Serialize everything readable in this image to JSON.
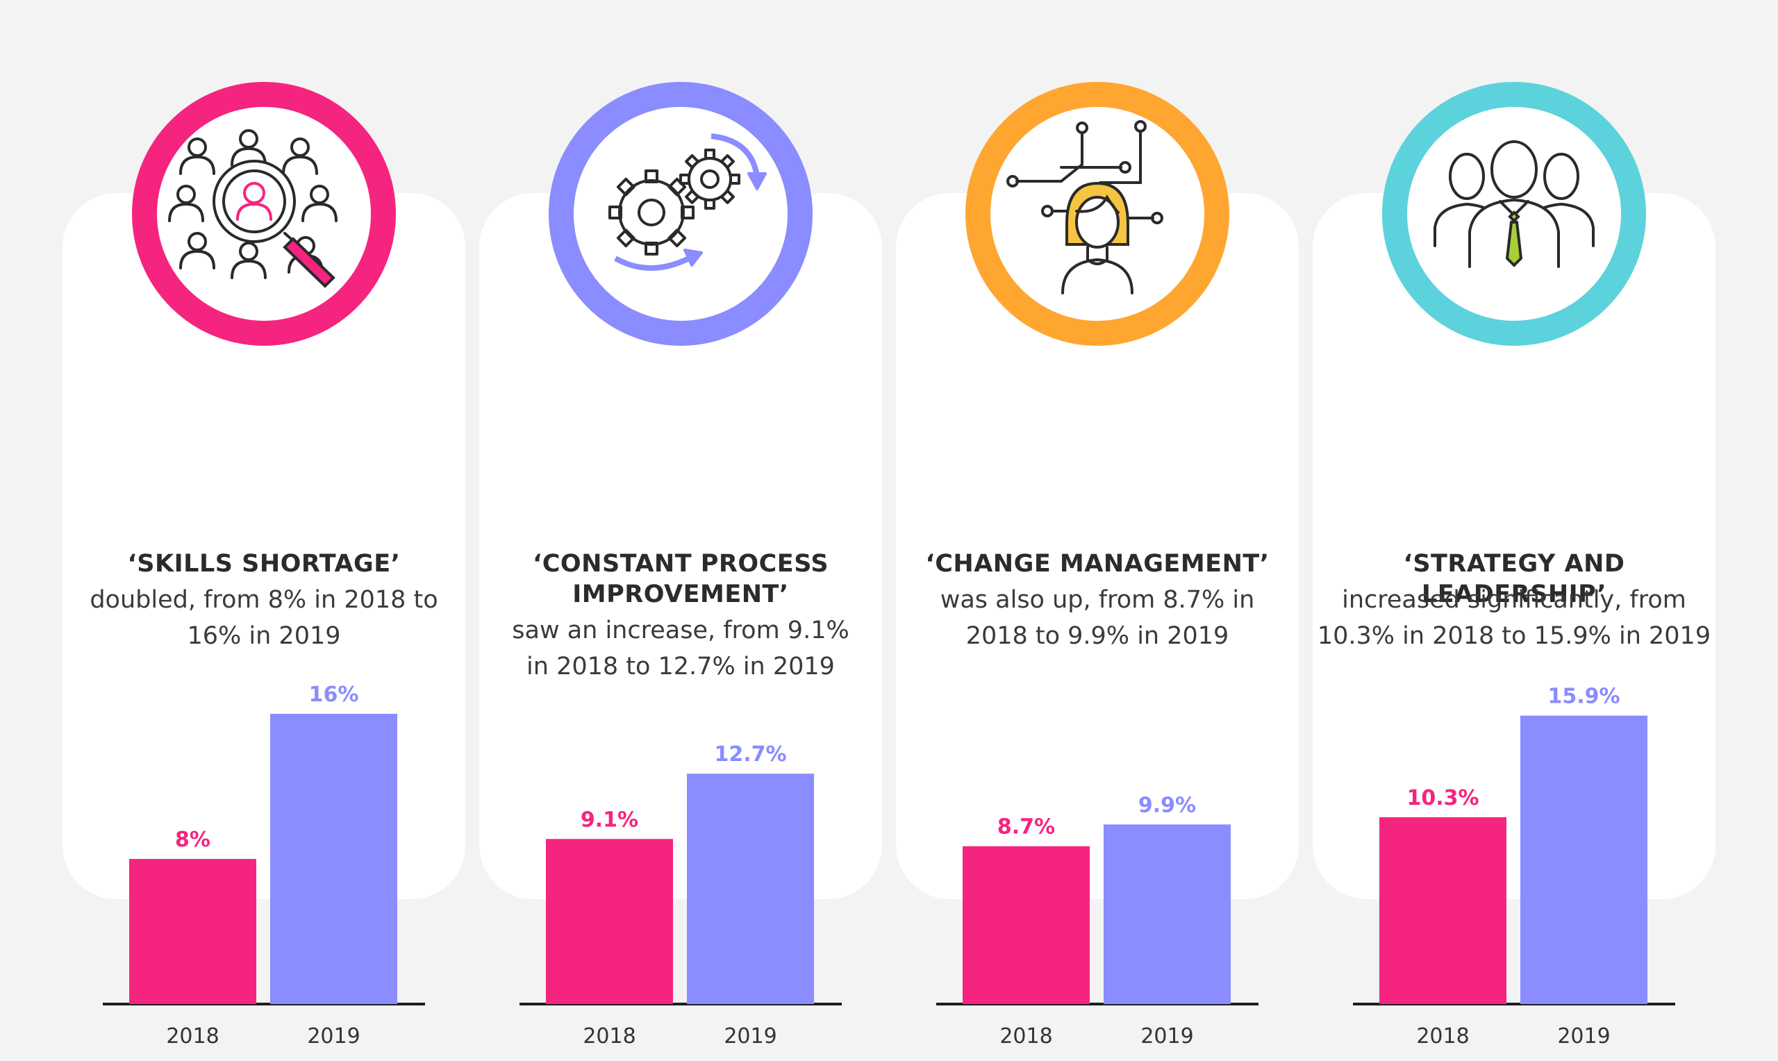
{
  "colors": {
    "y2018": "#f5247f",
    "y2019": "#8a8cff",
    "axis": "#1e1e1e"
  },
  "panels": [
    {
      "icon": "talent-search-icon",
      "ring_color": "#f5247f",
      "headline": "‘SKILLS SHORTAGE’",
      "desc_lines": [
        "doubled, from 8% in 2018 to",
        "16% in 2019"
      ]
    },
    {
      "icon": "gears-process-icon",
      "ring_color": "#8a8cff",
      "headline": "‘CONSTANT PROCESS IMPROVEMENT’",
      "desc_lines": [
        "saw an increase, from 9.1%",
        "in 2018 to 12.7% in 2019"
      ]
    },
    {
      "icon": "woman-network-icon",
      "ring_color": "#ffa630",
      "headline": "‘CHANGE MANAGEMENT’",
      "desc_lines": [
        "was also up, from 8.7% in",
        "2018 to 9.9% in 2019"
      ]
    },
    {
      "icon": "leadership-team-icon",
      "ring_color": "#5cd2dc",
      "headline": "‘STRATEGY AND LEADERSHIP’",
      "desc_lines": [
        "increased significantly, from",
        "10.3% in 2018 to 15.9% in 2019"
      ]
    }
  ],
  "chart_data": [
    {
      "type": "bar",
      "title": "‘SKILLS SHORTAGE’",
      "categories": [
        "2018",
        "2019"
      ],
      "values": [
        8,
        16
      ],
      "labels": [
        "8%",
        "16%"
      ],
      "unit": "%"
    },
    {
      "type": "bar",
      "title": "‘CONSTANT PROCESS IMPROVEMENT’",
      "categories": [
        "2018",
        "2019"
      ],
      "values": [
        9.1,
        12.7
      ],
      "labels": [
        "9.1%",
        "12.7%"
      ],
      "unit": "%"
    },
    {
      "type": "bar",
      "title": "‘CHANGE MANAGEMENT’",
      "categories": [
        "2018",
        "2019"
      ],
      "values": [
        8.7,
        9.9
      ],
      "labels": [
        "8.7%",
        "9.9%"
      ],
      "unit": "%"
    },
    {
      "type": "bar",
      "title": "‘STRATEGY AND LEADERSHIP’",
      "categories": [
        "2018",
        "2019"
      ],
      "values": [
        10.3,
        15.9
      ],
      "labels": [
        "10.3%",
        "15.9%"
      ],
      "unit": "%"
    }
  ]
}
